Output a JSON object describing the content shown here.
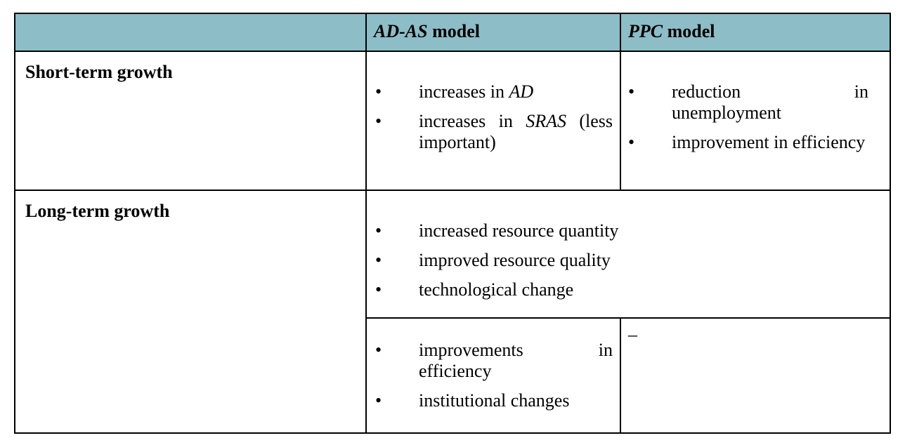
{
  "table": {
    "header": [
      [
        {
          "i": "AD-AS"
        },
        {
          "b": " model"
        }
      ],
      [
        {
          "i": "PPC"
        },
        {
          "b": " model"
        }
      ]
    ],
    "short_term": {
      "label": "Short-term growth",
      "ad_as": [
        [
          {
            "t": "increases in "
          },
          {
            "i": "AD"
          }
        ],
        [
          {
            "t": "increases in "
          },
          {
            "i": "SRAS"
          },
          {
            "t": " (less important)"
          }
        ]
      ],
      "ppc": [
        [
          {
            "t": "reduction in unemployment"
          }
        ],
        [
          {
            "t": "improvement in efficiency"
          }
        ]
      ]
    },
    "long_term": {
      "label": "Long-term growth",
      "shared": [
        [
          {
            "t": "increased resource quantity"
          }
        ],
        [
          {
            "t": "improved resource quality"
          }
        ],
        [
          {
            "t": "technological change"
          }
        ]
      ],
      "ad_as": [
        [
          {
            "t": "improvements in efficiency"
          }
        ],
        [
          {
            "t": "institutional changes"
          }
        ]
      ],
      "ppc": "–"
    }
  }
}
